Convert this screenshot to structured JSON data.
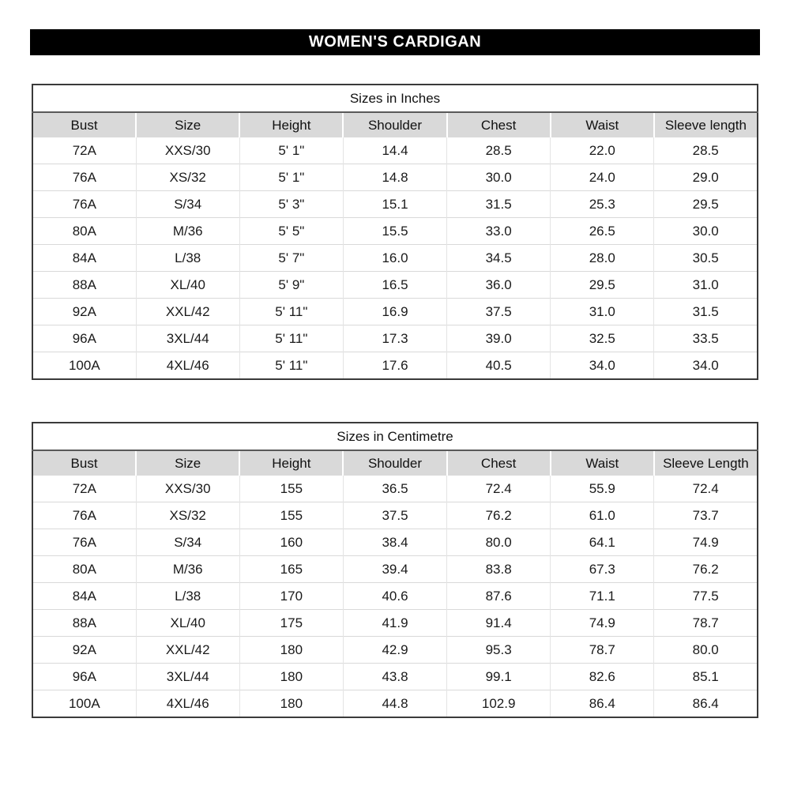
{
  "page": {
    "title": "WOMEN'S CARDIGAN"
  },
  "colors": {
    "title_bar_bg": "#000000",
    "title_bar_text": "#ffffff",
    "header_row_bg": "#d9d9d9",
    "table_border": "#3a3a3a",
    "row_divider": "#d9d9d9"
  },
  "tables": [
    {
      "caption": "Sizes in Inches",
      "columns": [
        "Bust",
        "Size",
        "Height",
        "Shoulder",
        "Chest",
        "Waist",
        "Sleeve length"
      ],
      "rows": [
        [
          "72A",
          "XXS/30",
          "5' 1\"",
          "14.4",
          "28.5",
          "22.0",
          "28.5"
        ],
        [
          "76A",
          "XS/32",
          "5' 1\"",
          "14.8",
          "30.0",
          "24.0",
          "29.0"
        ],
        [
          "76A",
          "S/34",
          "5' 3\"",
          "15.1",
          "31.5",
          "25.3",
          "29.5"
        ],
        [
          "80A",
          "M/36",
          "5' 5\"",
          "15.5",
          "33.0",
          "26.5",
          "30.0"
        ],
        [
          "84A",
          "L/38",
          "5' 7\"",
          "16.0",
          "34.5",
          "28.0",
          "30.5"
        ],
        [
          "88A",
          "XL/40",
          "5' 9\"",
          "16.5",
          "36.0",
          "29.5",
          "31.0"
        ],
        [
          "92A",
          "XXL/42",
          "5' 11\"",
          "16.9",
          "37.5",
          "31.0",
          "31.5"
        ],
        [
          "96A",
          "3XL/44",
          "5' 11\"",
          "17.3",
          "39.0",
          "32.5",
          "33.5"
        ],
        [
          "100A",
          "4XL/46",
          "5' 11\"",
          "17.6",
          "40.5",
          "34.0",
          "34.0"
        ]
      ]
    },
    {
      "caption": "Sizes in Centimetre",
      "columns": [
        "Bust",
        "Size",
        "Height",
        "Shoulder",
        "Chest",
        "Waist",
        "Sleeve Length"
      ],
      "rows": [
        [
          "72A",
          "XXS/30",
          "155",
          "36.5",
          "72.4",
          "55.9",
          "72.4"
        ],
        [
          "76A",
          "XS/32",
          "155",
          "37.5",
          "76.2",
          "61.0",
          "73.7"
        ],
        [
          "76A",
          "S/34",
          "160",
          "38.4",
          "80.0",
          "64.1",
          "74.9"
        ],
        [
          "80A",
          "M/36",
          "165",
          "39.4",
          "83.8",
          "67.3",
          "76.2"
        ],
        [
          "84A",
          "L/38",
          "170",
          "40.6",
          "87.6",
          "71.1",
          "77.5"
        ],
        [
          "88A",
          "XL/40",
          "175",
          "41.9",
          "91.4",
          "74.9",
          "78.7"
        ],
        [
          "92A",
          "XXL/42",
          "180",
          "42.9",
          "95.3",
          "78.7",
          "80.0"
        ],
        [
          "96A",
          "3XL/44",
          "180",
          "43.8",
          "99.1",
          "82.6",
          "85.1"
        ],
        [
          "100A",
          "4XL/46",
          "180",
          "44.8",
          "102.9",
          "86.4",
          "86.4"
        ]
      ]
    }
  ]
}
